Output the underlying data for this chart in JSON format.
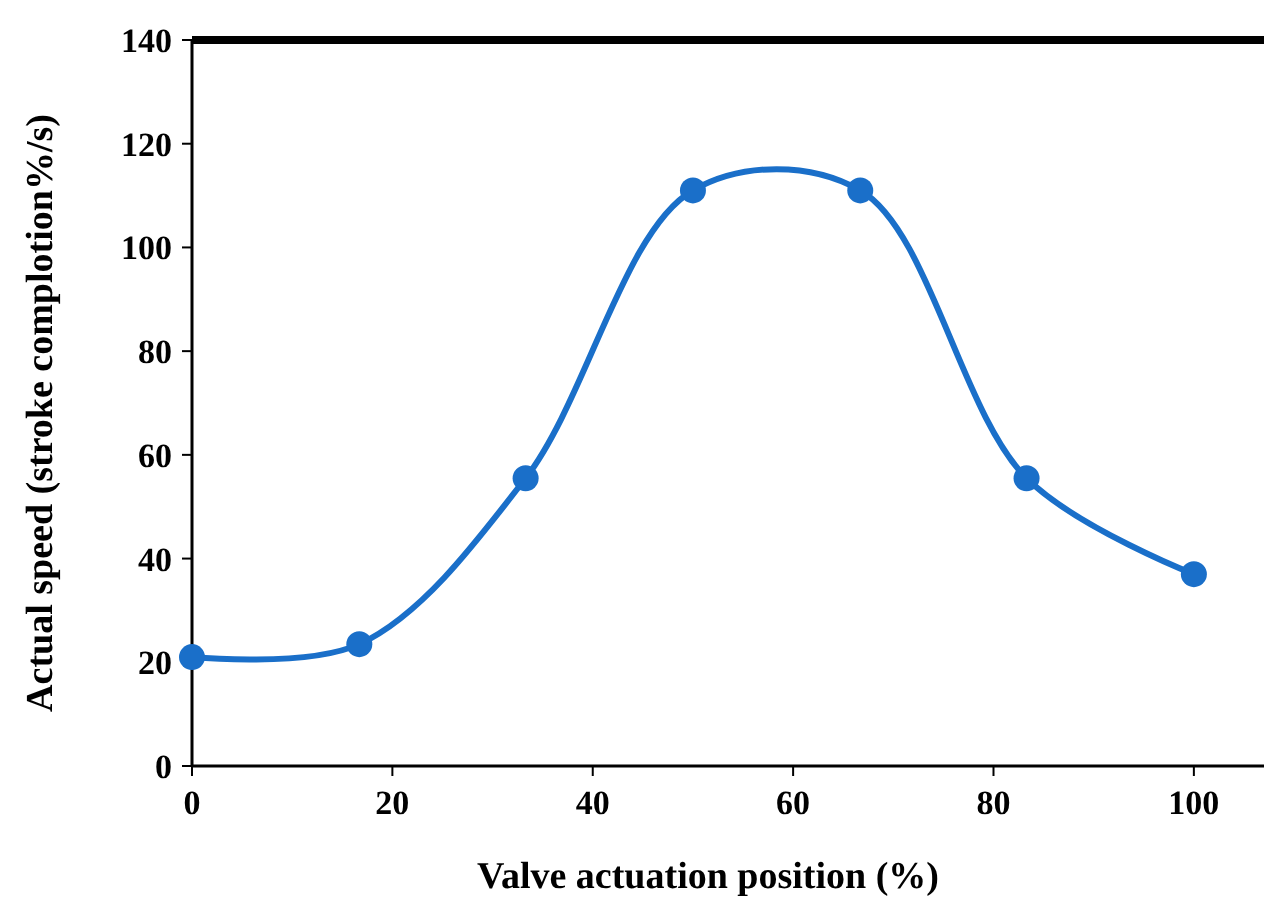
{
  "chart_data": {
    "type": "line",
    "xlabel": "Valve actuation position (%)",
    "ylabel": "Actual speed (stroke complotion%/s)",
    "x": [
      0,
      16.7,
      33.3,
      50,
      66.7,
      83.3,
      100
    ],
    "series": [
      {
        "color": "#1a6fc9",
        "values": [
          21,
          23.5,
          55.5,
          111,
          111,
          55.5,
          37
        ]
      }
    ],
    "xlim": [
      0,
      107
    ],
    "xticks": [
      0,
      20,
      40,
      60,
      80,
      100
    ],
    "ylim": [
      0,
      140
    ],
    "yticks": [
      0,
      20,
      40,
      60,
      80,
      100,
      120,
      140
    ],
    "grid": false,
    "marker": "circle",
    "line_style": "solid"
  }
}
